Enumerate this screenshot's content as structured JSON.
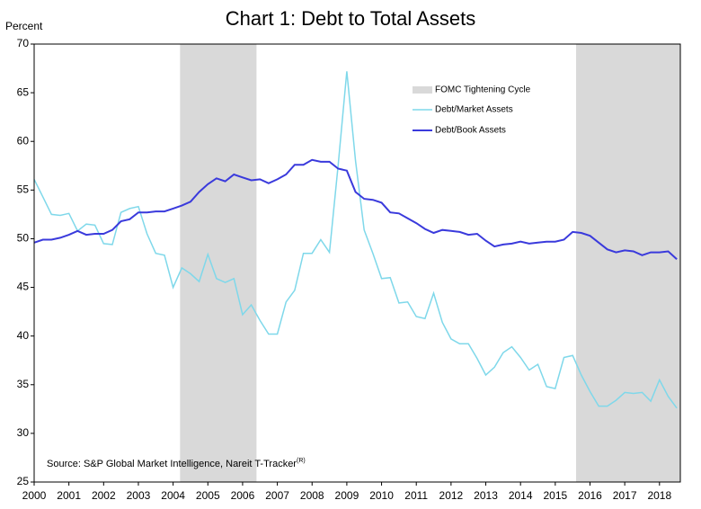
{
  "chart_data": {
    "type": "line",
    "title": "Chart 1: Debt to Total Assets",
    "y_label": "Percent",
    "annotation": "Source: S&P Global Market Intelligence, Nareit T-Tracker",
    "annotation_superscript": "(R)",
    "shaded_regions": {
      "name": "FOMC Tightening Cycle",
      "color": "#d9d9d9",
      "ranges": [
        [
          2004.2,
          2006.4
        ],
        [
          2015.6,
          2018.6
        ]
      ]
    },
    "x": [
      2000,
      2000.25,
      2000.5,
      2000.75,
      2001,
      2001.25,
      2001.5,
      2001.75,
      2002,
      2002.25,
      2002.5,
      2002.75,
      2003,
      2003.25,
      2003.5,
      2003.75,
      2004,
      2004.25,
      2004.5,
      2004.75,
      2005,
      2005.25,
      2005.5,
      2005.75,
      2006,
      2006.25,
      2006.5,
      2006.75,
      2007,
      2007.25,
      2007.5,
      2007.75,
      2008,
      2008.25,
      2008.5,
      2008.75,
      2009,
      2009.25,
      2009.5,
      2009.75,
      2010,
      2010.25,
      2010.5,
      2010.75,
      2011,
      2011.25,
      2011.5,
      2011.75,
      2012,
      2012.25,
      2012.5,
      2012.75,
      2013,
      2013.25,
      2013.5,
      2013.75,
      2014,
      2014.25,
      2014.5,
      2014.75,
      2015,
      2015.25,
      2015.5,
      2015.75,
      2016,
      2016.25,
      2016.5,
      2016.75,
      2017,
      2017.25,
      2017.5,
      2017.75,
      2018,
      2018.25,
      2018.5
    ],
    "series": [
      {
        "name": "Debt/Market Assets",
        "color": "#7fd8ea",
        "values": [
          56.1,
          54.3,
          52.5,
          52.4,
          52.6,
          50.8,
          51.5,
          51.4,
          49.5,
          49.4,
          52.7,
          53.1,
          53.3,
          50.5,
          48.5,
          48.3,
          45.0,
          47.0,
          46.4,
          45.6,
          48.4,
          45.9,
          45.5,
          45.9,
          42.2,
          43.2,
          41.6,
          40.2,
          40.2,
          43.5,
          44.7,
          48.5,
          48.5,
          49.9,
          48.6,
          57.5,
          67.2,
          58.0,
          50.9,
          48.5,
          45.9,
          46.0,
          43.4,
          43.5,
          42.0,
          41.8,
          44.4,
          41.4,
          39.7,
          39.2,
          39.2,
          37.7,
          36.0,
          36.8,
          38.3,
          38.9,
          37.8,
          36.5,
          37.1,
          34.8,
          34.6,
          37.8,
          38.0,
          36.0,
          34.3,
          32.8,
          32.8,
          33.4,
          34.2,
          34.1,
          34.2,
          33.3,
          35.5,
          33.8,
          32.6
        ]
      },
      {
        "name": "Debt/Book Assets",
        "color": "#3a3adc",
        "values": [
          49.6,
          49.9,
          49.9,
          50.1,
          50.4,
          50.8,
          50.4,
          50.5,
          50.5,
          50.9,
          51.8,
          52.0,
          52.7,
          52.7,
          52.8,
          52.8,
          53.1,
          53.4,
          53.8,
          54.8,
          55.6,
          56.2,
          55.9,
          56.6,
          56.3,
          56.0,
          56.1,
          55.7,
          56.1,
          56.6,
          57.6,
          57.6,
          58.1,
          57.9,
          57.9,
          57.2,
          57.0,
          54.8,
          54.1,
          54.0,
          53.7,
          52.7,
          52.6,
          52.1,
          51.6,
          51.0,
          50.6,
          50.9,
          50.8,
          50.7,
          50.4,
          50.5,
          49.8,
          49.2,
          49.4,
          49.5,
          49.7,
          49.5,
          49.6,
          49.7,
          49.7,
          49.9,
          50.7,
          50.6,
          50.3,
          49.6,
          48.9,
          48.6,
          48.8,
          48.7,
          48.3,
          48.6,
          48.6,
          48.7,
          47.9
        ]
      }
    ],
    "xlim": [
      2000,
      2018.6
    ],
    "xticks": [
      2000,
      2001,
      2002,
      2003,
      2004,
      2005,
      2006,
      2007,
      2008,
      2009,
      2010,
      2011,
      2012,
      2013,
      2014,
      2015,
      2016,
      2017,
      2018
    ],
    "ylim": [
      25,
      70
    ],
    "yticks": [
      25,
      30,
      35,
      40,
      45,
      50,
      55,
      60,
      65,
      70
    ],
    "grid": false
  }
}
